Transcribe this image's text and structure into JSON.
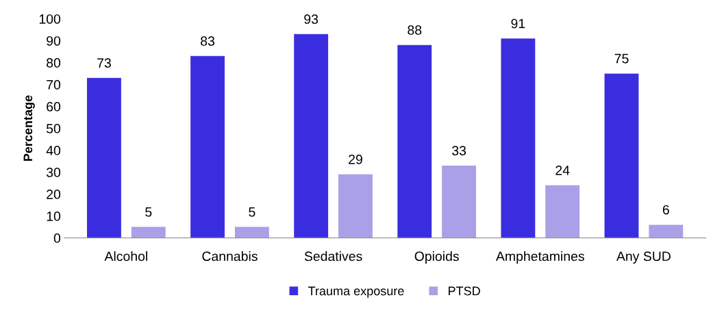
{
  "chart_data": {
    "type": "bar",
    "ylabel": "Percentage",
    "categories": [
      "Alcohol",
      "Cannabis",
      "Sedatives",
      "Opioids",
      "Amphetamines",
      "Any SUD"
    ],
    "series": [
      {
        "name": "Trauma exposure",
        "color": "#3a2de0",
        "values": [
          73,
          83,
          93,
          88,
          91,
          75
        ]
      },
      {
        "name": "PTSD",
        "color": "#a9a0e8",
        "values": [
          5,
          5,
          29,
          33,
          24,
          6
        ]
      }
    ],
    "ylim": [
      0,
      100
    ],
    "yticks": [
      0,
      10,
      20,
      30,
      40,
      50,
      60,
      70,
      80,
      90,
      100
    ],
    "data_labels": true,
    "legend": "bottom",
    "grid": false
  }
}
